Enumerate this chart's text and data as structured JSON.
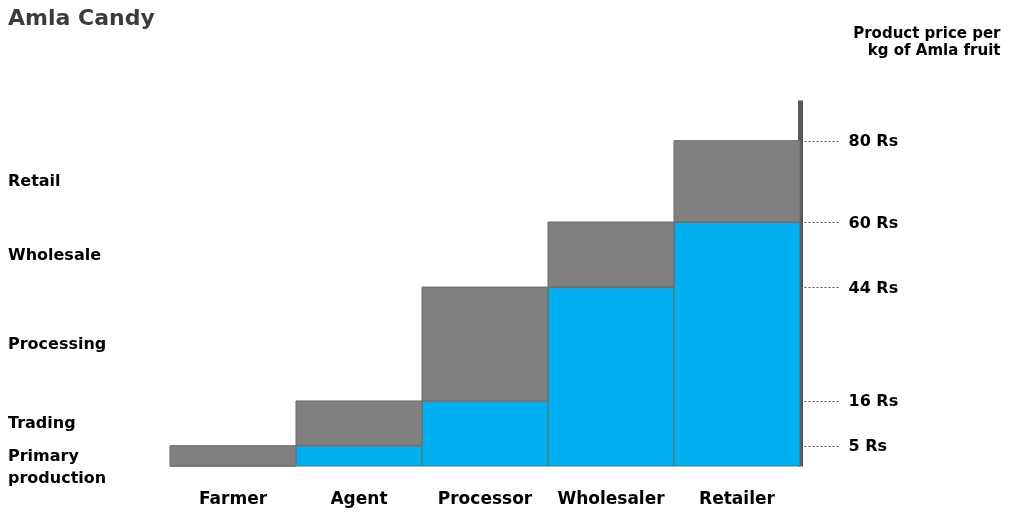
{
  "chart_data": {
    "type": "bar",
    "title": "Amla Candy",
    "ylabel": "Product price per kg of Amla fruit",
    "stacked": true,
    "categories": [
      "Farmer",
      "Agent",
      "Processor",
      "Wholesaler",
      "Retailer"
    ],
    "series": [
      {
        "color": "#00b0f0",
        "values": [
          0,
          5,
          16,
          44,
          60
        ]
      },
      {
        "color": "#808080",
        "values": [
          5,
          11,
          28,
          16,
          20
        ]
      }
    ],
    "ylim": [
      0,
      90
    ],
    "yticks": [
      {
        "value": 5,
        "label": "5 Rs"
      },
      {
        "value": 16,
        "label": "16 Rs"
      },
      {
        "value": 44,
        "label": "44 Rs"
      },
      {
        "value": 60,
        "label": "60 Rs"
      },
      {
        "value": 80,
        "label": "80 Rs"
      }
    ],
    "annotations": [
      "Retail",
      "Wholesale",
      "Processing",
      "Trading",
      "Primary production"
    ],
    "legend": false,
    "grid": false
  }
}
